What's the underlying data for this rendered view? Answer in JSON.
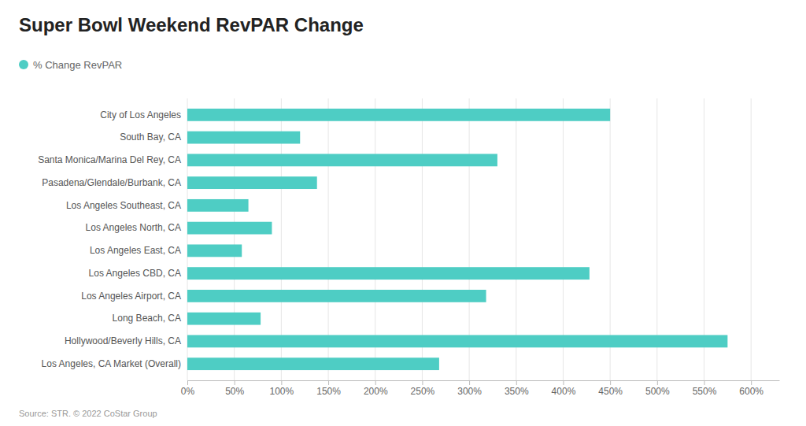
{
  "chart_data": {
    "type": "bar",
    "orientation": "horizontal",
    "title": "Super Bowl Weekend RevPAR Change",
    "annotations": [
      "Source: STR. © 2022 CoStar Group"
    ],
    "categories": [
      "City of Los Angeles",
      "South Bay, CA",
      "Santa Monica/Marina Del Rey, CA",
      "Pasadena/Glendale/Burbank, CA",
      "Los Angeles Southeast, CA",
      "Los Angeles North, CA",
      "Los Angeles East, CA",
      "Los Angeles CBD, CA",
      "Los Angeles Airport, CA",
      "Long Beach, CA",
      "Hollywood/Beverly Hills, CA",
      "Los Angeles, CA Market (Overall)"
    ],
    "series": [
      {
        "name": "% Change RevPAR",
        "color": "#4ECDC4",
        "values": [
          450,
          120,
          330,
          138,
          65,
          90,
          58,
          428,
          318,
          78,
          575,
          268
        ]
      }
    ],
    "xlim": [
      0,
      630
    ],
    "xticks": [
      {
        "value": 0,
        "label": "0%"
      },
      {
        "value": 50,
        "label": "50%"
      },
      {
        "value": 100,
        "label": "100%"
      },
      {
        "value": 150,
        "label": "150%"
      },
      {
        "value": 200,
        "label": "200%"
      },
      {
        "value": 250,
        "label": "250%"
      },
      {
        "value": 300,
        "label": "300%"
      },
      {
        "value": 350,
        "label": "350%"
      },
      {
        "value": 400,
        "label": "400%"
      },
      {
        "value": 450,
        "label": "450%"
      },
      {
        "value": 500,
        "label": "500%"
      },
      {
        "value": 550,
        "label": "550%"
      },
      {
        "value": 600,
        "label": "600%"
      }
    ],
    "grid": true,
    "legend": "top-left"
  }
}
